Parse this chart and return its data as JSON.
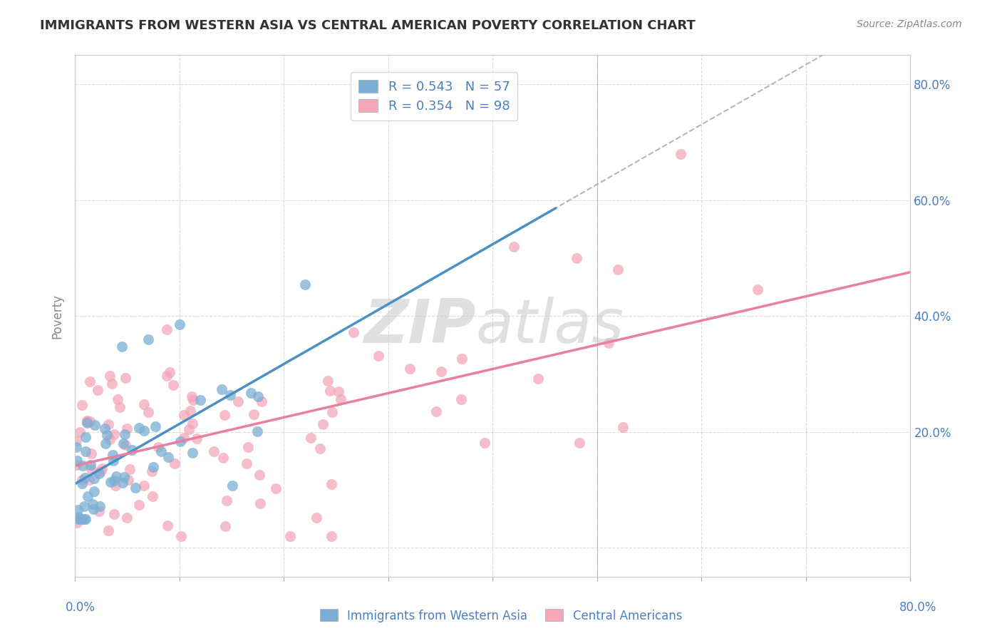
{
  "title": "IMMIGRANTS FROM WESTERN ASIA VS CENTRAL AMERICAN POVERTY CORRELATION CHART",
  "source": "Source: ZipAtlas.com",
  "ylabel": "Poverty",
  "blue_color": "#7bafd4",
  "pink_color": "#f4a7b9",
  "blue_line_color": "#4a90c4",
  "pink_line_color": "#e87fa0",
  "dashed_line_color": "#aaaaaa",
  "text_color_blue": "#4a7fc1",
  "xlim": [
    0.0,
    0.8
  ],
  "ylim": [
    -0.05,
    0.85
  ],
  "N_blue": 57,
  "N_pink": 98,
  "R_blue": 0.543,
  "R_pink": 0.354
}
